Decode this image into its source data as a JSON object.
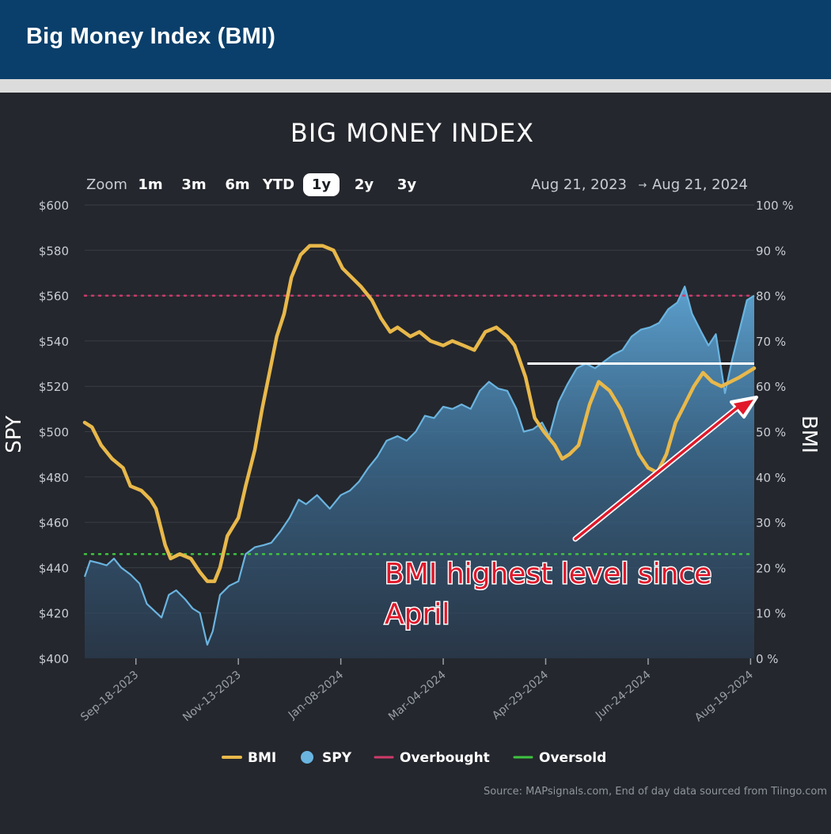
{
  "banner": {
    "title": "Big Money Index (BMI)"
  },
  "chart_title": "BIG MONEY INDEX",
  "toolbar": {
    "zoom_label": "Zoom",
    "ranges": [
      {
        "label": "1m",
        "active": false
      },
      {
        "label": "3m",
        "active": false
      },
      {
        "label": "6m",
        "active": false
      },
      {
        "label": "YTD",
        "active": false
      },
      {
        "label": "1y",
        "active": true
      },
      {
        "label": "2y",
        "active": false
      },
      {
        "label": "3y",
        "active": false
      }
    ],
    "date_from": "Aug 21, 2023",
    "date_arrow": "→",
    "date_to": "Aug 21, 2024"
  },
  "annotation": {
    "line1": "BMI highest level since",
    "line2": "April"
  },
  "source": "Source: MAPsignals.com, End of day data sourced from Tiingo.com",
  "colors": {
    "bmi": "#e8b84a",
    "spy": "#6ab4e0",
    "overbought": "#cf3b6a",
    "oversold": "#3fc43f",
    "annotation": "#e0182a",
    "background": "#24272d",
    "banner": "#0a3f6b"
  },
  "chart_data": {
    "type": "line",
    "left_axis": {
      "label": "SPY",
      "ylim": [
        400,
        600
      ],
      "ticks": [
        "$400",
        "$420",
        "$440",
        "$460",
        "$480",
        "$500",
        "$520",
        "$540",
        "$560",
        "$580",
        "$600"
      ]
    },
    "right_axis": {
      "label": "BMI",
      "ylim": [
        0,
        100
      ],
      "ticks": [
        "0 %",
        "10 %",
        "20 %",
        "30 %",
        "40 %",
        "50 %",
        "60 %",
        "70 %",
        "80 %",
        "90 %",
        "100 %"
      ]
    },
    "x_ticks": [
      "Sep-18-2023",
      "Nov-13-2023",
      "Jan-08-2024",
      "Mar-04-2024",
      "Apr-29-2024",
      "Jun-24-2024",
      "Aug-19-2024"
    ],
    "x_range": [
      "2023-08-21",
      "2024-08-21"
    ],
    "overbought": 80,
    "oversold": 23,
    "resistance_line": {
      "value": 65,
      "x_start": "2024-04-19",
      "x_end": "2024-08-21"
    },
    "legend": [
      {
        "name": "BMI",
        "kind": "line"
      },
      {
        "name": "SPY",
        "kind": "dot"
      },
      {
        "name": "Overbought",
        "kind": "line"
      },
      {
        "name": "Oversold",
        "kind": "line"
      }
    ],
    "series": [
      {
        "name": "BMI",
        "axis": "right",
        "points": [
          [
            "2023-08-21",
            52
          ],
          [
            "2023-08-25",
            51
          ],
          [
            "2023-08-30",
            47
          ],
          [
            "2023-09-05",
            44
          ],
          [
            "2023-09-11",
            42
          ],
          [
            "2023-09-15",
            38
          ],
          [
            "2023-09-21",
            37
          ],
          [
            "2023-09-26",
            35
          ],
          [
            "2023-09-29",
            33
          ],
          [
            "2023-10-04",
            25
          ],
          [
            "2023-10-07",
            22
          ],
          [
            "2023-10-12",
            23
          ],
          [
            "2023-10-18",
            22
          ],
          [
            "2023-10-23",
            19
          ],
          [
            "2023-10-27",
            17
          ],
          [
            "2023-10-31",
            17
          ],
          [
            "2023-11-03",
            20
          ],
          [
            "2023-11-07",
            27
          ],
          [
            "2023-11-13",
            31
          ],
          [
            "2023-11-17",
            38
          ],
          [
            "2023-11-22",
            46
          ],
          [
            "2023-11-26",
            55
          ],
          [
            "2023-11-30",
            63
          ],
          [
            "2023-12-04",
            71
          ],
          [
            "2023-12-08",
            76
          ],
          [
            "2023-12-12",
            84
          ],
          [
            "2023-12-17",
            89
          ],
          [
            "2023-12-22",
            91
          ],
          [
            "2023-12-29",
            91
          ],
          [
            "2024-01-04",
            90
          ],
          [
            "2024-01-09",
            86
          ],
          [
            "2024-01-14",
            84
          ],
          [
            "2024-01-19",
            82
          ],
          [
            "2024-01-25",
            79
          ],
          [
            "2024-01-30",
            75
          ],
          [
            "2024-02-04",
            72
          ],
          [
            "2024-02-08",
            73
          ],
          [
            "2024-02-15",
            71
          ],
          [
            "2024-02-20",
            72
          ],
          [
            "2024-02-26",
            70
          ],
          [
            "2024-03-04",
            69
          ],
          [
            "2024-03-09",
            70
          ],
          [
            "2024-03-15",
            69
          ],
          [
            "2024-03-21",
            68
          ],
          [
            "2024-03-27",
            72
          ],
          [
            "2024-04-02",
            73
          ],
          [
            "2024-04-08",
            71
          ],
          [
            "2024-04-12",
            69
          ],
          [
            "2024-04-18",
            62
          ],
          [
            "2024-04-23",
            53
          ],
          [
            "2024-04-28",
            50
          ],
          [
            "2024-05-04",
            47
          ],
          [
            "2024-05-08",
            44
          ],
          [
            "2024-05-12",
            45
          ],
          [
            "2024-05-17",
            47
          ],
          [
            "2024-05-23",
            56
          ],
          [
            "2024-05-28",
            61
          ],
          [
            "2024-06-03",
            59
          ],
          [
            "2024-06-09",
            55
          ],
          [
            "2024-06-14",
            50
          ],
          [
            "2024-06-19",
            45
          ],
          [
            "2024-06-24",
            42
          ],
          [
            "2024-06-29",
            41
          ],
          [
            "2024-07-04",
            45
          ],
          [
            "2024-07-09",
            52
          ],
          [
            "2024-07-14",
            56
          ],
          [
            "2024-07-19",
            60
          ],
          [
            "2024-07-24",
            63
          ],
          [
            "2024-07-29",
            61
          ],
          [
            "2024-08-03",
            60
          ],
          [
            "2024-08-08",
            61
          ],
          [
            "2024-08-13",
            62
          ],
          [
            "2024-08-17",
            63
          ],
          [
            "2024-08-21",
            64
          ]
        ]
      },
      {
        "name": "SPY",
        "axis": "left",
        "points": [
          [
            "2023-08-21",
            436
          ],
          [
            "2023-08-24",
            443
          ],
          [
            "2023-08-29",
            442
          ],
          [
            "2023-09-02",
            441
          ],
          [
            "2023-09-06",
            444
          ],
          [
            "2023-09-10",
            440
          ],
          [
            "2023-09-15",
            437
          ],
          [
            "2023-09-20",
            433
          ],
          [
            "2023-09-24",
            424
          ],
          [
            "2023-09-28",
            421
          ],
          [
            "2023-10-02",
            418
          ],
          [
            "2023-10-06",
            428
          ],
          [
            "2023-10-10",
            430
          ],
          [
            "2023-10-15",
            426
          ],
          [
            "2023-10-19",
            422
          ],
          [
            "2023-10-23",
            420
          ],
          [
            "2023-10-27",
            406
          ],
          [
            "2023-10-30",
            412
          ],
          [
            "2023-11-03",
            428
          ],
          [
            "2023-11-08",
            432
          ],
          [
            "2023-11-13",
            434
          ],
          [
            "2023-11-17",
            446
          ],
          [
            "2023-11-22",
            449
          ],
          [
            "2023-11-27",
            450
          ],
          [
            "2023-12-01",
            451
          ],
          [
            "2023-12-06",
            456
          ],
          [
            "2023-12-11",
            462
          ],
          [
            "2023-12-16",
            470
          ],
          [
            "2023-12-20",
            468
          ],
          [
            "2023-12-26",
            472
          ],
          [
            "2024-01-02",
            466
          ],
          [
            "2024-01-08",
            472
          ],
          [
            "2024-01-13",
            474
          ],
          [
            "2024-01-18",
            478
          ],
          [
            "2024-01-23",
            484
          ],
          [
            "2024-01-28",
            489
          ],
          [
            "2024-02-02",
            496
          ],
          [
            "2024-02-08",
            498
          ],
          [
            "2024-02-13",
            496
          ],
          [
            "2024-02-18",
            500
          ],
          [
            "2024-02-23",
            507
          ],
          [
            "2024-02-28",
            506
          ],
          [
            "2024-03-04",
            511
          ],
          [
            "2024-03-09",
            510
          ],
          [
            "2024-03-14",
            512
          ],
          [
            "2024-03-19",
            510
          ],
          [
            "2024-03-24",
            518
          ],
          [
            "2024-03-29",
            522
          ],
          [
            "2024-04-03",
            519
          ],
          [
            "2024-04-08",
            518
          ],
          [
            "2024-04-13",
            510
          ],
          [
            "2024-04-17",
            500
          ],
          [
            "2024-04-22",
            501
          ],
          [
            "2024-04-27",
            504
          ],
          [
            "2024-05-01",
            498
          ],
          [
            "2024-05-06",
            513
          ],
          [
            "2024-05-11",
            521
          ],
          [
            "2024-05-16",
            528
          ],
          [
            "2024-05-21",
            530
          ],
          [
            "2024-05-26",
            528
          ],
          [
            "2024-05-31",
            531
          ],
          [
            "2024-06-05",
            534
          ],
          [
            "2024-06-10",
            536
          ],
          [
            "2024-06-15",
            542
          ],
          [
            "2024-06-20",
            545
          ],
          [
            "2024-06-25",
            546
          ],
          [
            "2024-06-30",
            548
          ],
          [
            "2024-07-05",
            554
          ],
          [
            "2024-07-10",
            557
          ],
          [
            "2024-07-14",
            564
          ],
          [
            "2024-07-18",
            552
          ],
          [
            "2024-07-23",
            544
          ],
          [
            "2024-07-27",
            538
          ],
          [
            "2024-07-31",
            543
          ],
          [
            "2024-08-05",
            517
          ],
          [
            "2024-08-09",
            532
          ],
          [
            "2024-08-13",
            545
          ],
          [
            "2024-08-17",
            558
          ],
          [
            "2024-08-21",
            560
          ]
        ]
      }
    ]
  }
}
